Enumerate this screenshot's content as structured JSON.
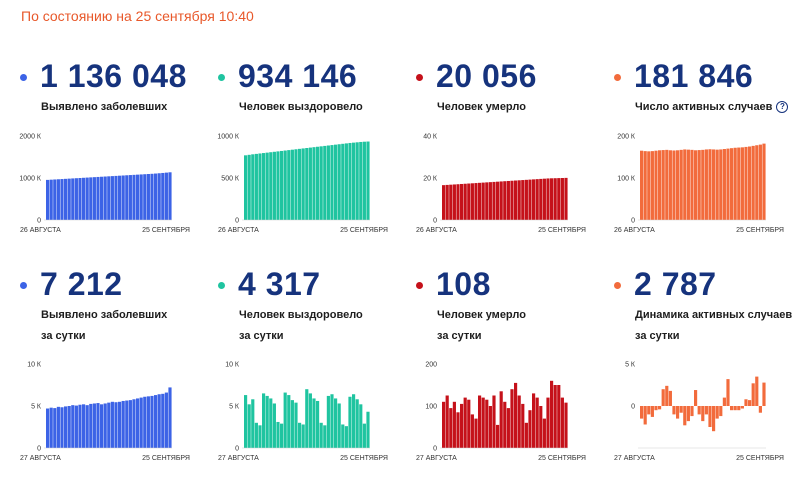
{
  "status": "По состоянию на 25 сентября 10:40",
  "colors": {
    "blue": "#3c63e6",
    "teal": "#1fc4a0",
    "red": "#c5111a",
    "orange": "#f26b3c",
    "number": "#16337d",
    "status": "#e8582a"
  },
  "help_icon": "?",
  "cards": [
    {
      "value": "1 136 048",
      "label1": "Выявлено заболевших",
      "label2": "",
      "color": "blue"
    },
    {
      "value": "934 146",
      "label1": "Человек выздоровело",
      "label2": "",
      "color": "teal"
    },
    {
      "value": "20 056",
      "label1": "Человек умерло",
      "label2": "",
      "color": "red"
    },
    {
      "value": "181 846",
      "label1": "Число активных случаев",
      "label2": "",
      "color": "orange"
    },
    {
      "value": "7 212",
      "label1": "Выявлено заболевших",
      "label2": "за сутки",
      "color": "blue"
    },
    {
      "value": "4 317",
      "label1": "Человек выздоровело",
      "label2": "за сутки",
      "color": "teal"
    },
    {
      "value": "108",
      "label1": "Человек умерло",
      "label2": "за сутки",
      "color": "red"
    },
    {
      "value": "2 787",
      "label1": "Динамика активных случаев",
      "label2": "за сутки",
      "color": "orange"
    }
  ],
  "chart_data": [
    {
      "type": "bar",
      "series": [
        {
          "color": "blue",
          "values": [
            955000,
            960000,
            965000,
            970000,
            975000,
            980000,
            985000,
            990000,
            995000,
            1000000,
            1005000,
            1010000,
            1015000,
            1020000,
            1025000,
            1030000,
            1035000,
            1040000,
            1045000,
            1050000,
            1055000,
            1060000,
            1065000,
            1070000,
            1075000,
            1080000,
            1085000,
            1090000,
            1095000,
            1100000,
            1106000,
            1113000,
            1120000,
            1128000,
            1136048
          ]
        }
      ],
      "ylim": [
        0,
        2000000
      ],
      "yticks": [
        0,
        1000000,
        2000000
      ],
      "ytick_labels": [
        "0",
        "1000 К",
        "2000 К"
      ],
      "x_start_label": "26 АВГУСТА",
      "x_end_label": "25 СЕНТЯБРЯ"
    },
    {
      "type": "bar",
      "series": [
        {
          "color": "teal",
          "values": [
            770000,
            776000,
            782000,
            787000,
            792000,
            797000,
            802000,
            807000,
            812000,
            817000,
            822000,
            827000,
            832000,
            837000,
            842000,
            847000,
            852000,
            857000,
            862000,
            867000,
            872000,
            877000,
            882000,
            887000,
            892000,
            897000,
            902000,
            907000,
            912000,
            917000,
            921000,
            925000,
            929000,
            932000,
            934146
          ]
        }
      ],
      "ylim": [
        0,
        1000000
      ],
      "yticks": [
        0,
        500000,
        1000000
      ],
      "ytick_labels": [
        "0",
        "500 К",
        "1000 К"
      ],
      "x_start_label": "26 АВГУСТА",
      "x_end_label": "25 СЕНТЯБРЯ"
    },
    {
      "type": "bar",
      "series": [
        {
          "color": "red",
          "values": [
            16600,
            16710,
            16820,
            16930,
            17040,
            17150,
            17260,
            17370,
            17480,
            17590,
            17700,
            17810,
            17920,
            18030,
            18140,
            18250,
            18360,
            18470,
            18580,
            18690,
            18800,
            18910,
            19020,
            19130,
            19240,
            19350,
            19460,
            19570,
            19680,
            19790,
            19850,
            19900,
            19950,
            20000,
            20056
          ]
        }
      ],
      "ylim": [
        0,
        40000
      ],
      "yticks": [
        0,
        20000,
        40000
      ],
      "ytick_labels": [
        "0",
        "20 К",
        "40 К"
      ],
      "x_start_label": "26 АВГУСТА",
      "x_end_label": "25 СЕНТЯБРЯ"
    },
    {
      "type": "bar",
      "series": [
        {
          "color": "orange",
          "values": [
            165000,
            164000,
            163500,
            164000,
            165000,
            166000,
            166500,
            167000,
            166000,
            165500,
            166000,
            167000,
            168000,
            167500,
            167000,
            166000,
            166500,
            167000,
            168000,
            168500,
            168000,
            167500,
            168000,
            169000,
            170000,
            171000,
            172000,
            172500,
            173000,
            174000,
            175000,
            176500,
            178000,
            179500,
            181846
          ]
        }
      ],
      "ylim": [
        0,
        200000
      ],
      "yticks": [
        0,
        100000,
        200000
      ],
      "ytick_labels": [
        "0",
        "100 К",
        "200 К"
      ],
      "x_start_label": "26 АВГУСТА",
      "x_end_label": "25 СЕНТЯБРЯ"
    },
    {
      "type": "bar",
      "series": [
        {
          "color": "blue",
          "values": [
            4700,
            4800,
            4750,
            4900,
            4850,
            4950,
            5000,
            5100,
            5050,
            5150,
            5200,
            5100,
            5250,
            5300,
            5350,
            5200,
            5300,
            5400,
            5500,
            5450,
            5500,
            5600,
            5650,
            5700,
            5800,
            5900,
            6000,
            6100,
            6150,
            6200,
            6300,
            6400,
            6450,
            6600,
            7212
          ]
        }
      ],
      "ylim": [
        0,
        10000
      ],
      "yticks": [
        0,
        5000,
        10000
      ],
      "ytick_labels": [
        "0",
        "5 К",
        "10 К"
      ],
      "x_start_label": "27 АВГУСТА",
      "x_end_label": "25 СЕНТЯБРЯ"
    },
    {
      "type": "bar",
      "series": [
        {
          "color": "teal",
          "values": [
            6300,
            5200,
            5800,
            3000,
            2700,
            6500,
            6200,
            5900,
            5300,
            3100,
            2900,
            6600,
            6300,
            5700,
            5400,
            3000,
            2800,
            7000,
            6500,
            5900,
            5600,
            3000,
            2700,
            6200,
            6400,
            5900,
            5300,
            2800,
            2600,
            6100,
            6400,
            5800,
            5200,
            2900,
            4317
          ]
        }
      ],
      "ylim": [
        0,
        10000
      ],
      "yticks": [
        0,
        5000,
        10000
      ],
      "ytick_labels": [
        "0",
        "5 К",
        "10 К"
      ],
      "x_start_label": "27 АВГУСТА",
      "x_end_label": "25 СЕНТЯБРЯ"
    },
    {
      "type": "bar",
      "series": [
        {
          "color": "red",
          "values": [
            110,
            125,
            95,
            110,
            85,
            105,
            120,
            115,
            80,
            70,
            125,
            120,
            115,
            100,
            125,
            55,
            135,
            110,
            95,
            140,
            155,
            125,
            105,
            60,
            90,
            130,
            120,
            100,
            70,
            120,
            160,
            150,
            150,
            120,
            108
          ]
        }
      ],
      "ylim": [
        0,
        200
      ],
      "yticks": [
        0,
        100,
        200
      ],
      "ytick_labels": [
        "0",
        "100",
        "200"
      ],
      "x_start_label": "27 АВГУСТА",
      "x_end_label": "25 СЕНТЯБРЯ"
    },
    {
      "type": "bar",
      "series": [
        {
          "color": "orange",
          "values": [
            -1500,
            -2200,
            -1000,
            -1300,
            -500,
            -400,
            2000,
            2400,
            1800,
            -1000,
            -1500,
            -800,
            -2300,
            -1800,
            -1200,
            1900,
            -1000,
            -1800,
            -1000,
            -2500,
            -3000,
            -1500,
            -1200,
            1000,
            3200,
            -500,
            -500,
            -500,
            -300,
            800,
            700,
            2700,
            3500,
            -800,
            2787
          ]
        }
      ],
      "ylim": [
        -5000,
        5000
      ],
      "yticks": [
        0,
        5000
      ],
      "ytick_labels": [
        "0",
        "5 К"
      ],
      "x_start_label": "27 АВГУСТА",
      "x_end_label": "25 СЕНТЯБРЯ"
    }
  ]
}
